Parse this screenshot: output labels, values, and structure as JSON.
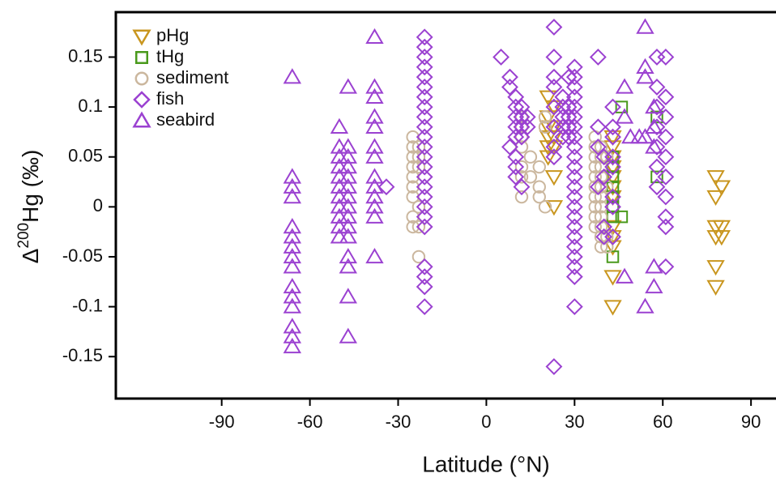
{
  "chart_data": {
    "type": "scatter",
    "xlabel": "Latitude (°N)",
    "ylabel_prefix": "Δ",
    "ylabel_sup": "200",
    "ylabel_rest": "Hg (‰)",
    "xlim": [
      -126,
      98.5
    ],
    "ylim": [
      -0.192,
      0.195
    ],
    "xticks": [
      -90,
      -60,
      -30,
      0,
      30,
      60,
      90
    ],
    "yticks": [
      -0.15,
      -0.1,
      -0.05,
      0,
      0.05,
      0.1,
      0.15
    ],
    "legend": "upper left",
    "series": [
      {
        "name": "pHg",
        "color": "#c9961f",
        "marker": "triangle-down",
        "x": [
          21,
          21,
          21,
          21,
          21,
          21,
          23,
          23,
          23,
          23,
          23,
          23,
          43,
          43,
          43,
          43,
          43,
          43,
          43,
          43,
          43,
          43,
          43,
          43,
          78,
          78,
          78,
          78,
          78,
          78,
          80,
          80,
          80,
          80
        ],
        "values": [
          0.11,
          0.09,
          0.08,
          0.07,
          0.06,
          0.05,
          0.1,
          0.08,
          0.07,
          0.06,
          0.03,
          0,
          0.07,
          0.06,
          0.05,
          0.04,
          0.03,
          0.02,
          0.01,
          -0.02,
          -0.03,
          -0.04,
          -0.07,
          -0.1,
          0.03,
          0.01,
          -0.02,
          -0.03,
          -0.06,
          -0.08,
          0.02,
          0.02,
          -0.02,
          -0.03
        ]
      },
      {
        "name": "tHg",
        "color": "#4a9a1c",
        "marker": "square",
        "x": [
          43,
          43,
          43,
          43,
          43,
          43,
          43,
          43,
          46,
          46,
          58,
          58
        ],
        "values": [
          0.05,
          0.04,
          0.03,
          0.02,
          0.01,
          0,
          -0.01,
          -0.05,
          0.1,
          -0.01,
          0.09,
          0.03
        ]
      },
      {
        "name": "sediment",
        "color": "#cbb79e",
        "marker": "circle",
        "x": [
          -25,
          -25,
          -25,
          -25,
          -25,
          -25,
          -25,
          -25,
          -25,
          -23,
          -23,
          -23,
          -23,
          -23,
          -23,
          12,
          12,
          12,
          12,
          12,
          12,
          12,
          15,
          15,
          18,
          18,
          18,
          20,
          20,
          20,
          37,
          37,
          37,
          37,
          37,
          37,
          37,
          37,
          37,
          37,
          39,
          39,
          39,
          39,
          39,
          39,
          39,
          39,
          39,
          39,
          39,
          41,
          41,
          41,
          41
        ],
        "values": [
          0.07,
          0.06,
          0.05,
          0.04,
          0.03,
          0.02,
          0.01,
          -0.01,
          -0.02,
          0.06,
          0.05,
          0.04,
          0,
          -0.02,
          -0.05,
          0.09,
          0.08,
          0.07,
          0.06,
          0.04,
          0.03,
          0.01,
          0.05,
          0.03,
          0.04,
          0.02,
          0.01,
          0.09,
          0.08,
          0,
          0.07,
          0.06,
          0.05,
          0.04,
          0.03,
          0.02,
          0.01,
          0,
          -0.01,
          -0.02,
          0.06,
          0.05,
          0.04,
          0.03,
          0.02,
          0.01,
          0,
          -0.01,
          -0.02,
          -0.03,
          -0.04,
          0.05,
          0.02,
          -0.03,
          -0.04
        ]
      },
      {
        "name": "fish",
        "color": "#9b41d1",
        "marker": "diamond",
        "x": [
          -34,
          -21,
          -21,
          -21,
          -21,
          -21,
          -21,
          -21,
          -21,
          -21,
          -21,
          -21,
          -21,
          -21,
          -21,
          -21,
          -21,
          -21,
          -21,
          -21,
          -21,
          -21,
          -21,
          -21,
          -21,
          5,
          8,
          8,
          8,
          10,
          10,
          10,
          10,
          10,
          10,
          10,
          10,
          12,
          12,
          12,
          12,
          12,
          14,
          14,
          23,
          23,
          23,
          23,
          23,
          23,
          23,
          23,
          23,
          26,
          26,
          26,
          26,
          26,
          28,
          28,
          28,
          28,
          28,
          30,
          30,
          30,
          30,
          30,
          30,
          30,
          30,
          30,
          30,
          30,
          30,
          30,
          30,
          30,
          30,
          30,
          30,
          30,
          30,
          30,
          30,
          30,
          38,
          38,
          38,
          38,
          40,
          40,
          40,
          40,
          43,
          43,
          43,
          43,
          43,
          43,
          43,
          43,
          58,
          58,
          58,
          58,
          58,
          58,
          58,
          61,
          61,
          61,
          61,
          61,
          61,
          61,
          61,
          61,
          61
        ],
        "values": [
          0.02,
          0.17,
          0.16,
          0.15,
          0.14,
          0.13,
          0.12,
          0.11,
          0.1,
          0.09,
          0.08,
          0.07,
          0.06,
          0.05,
          0.04,
          0.03,
          0.02,
          0.01,
          0,
          -0.01,
          -0.02,
          -0.06,
          -0.07,
          -0.08,
          -0.1,
          0.15,
          0.13,
          0.12,
          0.06,
          0.11,
          0.1,
          0.09,
          0.08,
          0.07,
          0.05,
          0.04,
          0.03,
          0.1,
          0.09,
          0.08,
          0.07,
          0.02,
          0.09,
          0.08,
          0.18,
          0.15,
          0.13,
          0.12,
          0.1,
          0.08,
          0.06,
          0.05,
          -0.16,
          0.11,
          0.1,
          0.09,
          0.08,
          0.07,
          0.13,
          0.1,
          0.09,
          0.08,
          0.07,
          0.14,
          0.13,
          0.12,
          0.11,
          0.1,
          0.09,
          0.08,
          0.07,
          0.06,
          0.05,
          0.04,
          0.03,
          0.02,
          0.01,
          0,
          -0.01,
          -0.02,
          -0.03,
          -0.04,
          -0.05,
          -0.06,
          -0.07,
          -0.1,
          0.15,
          0.08,
          0.06,
          0.02,
          0.05,
          0.03,
          -0.02,
          -0.03,
          0.1,
          0.08,
          0.07,
          0.05,
          0.04,
          0.01,
          0,
          -0.03,
          0.15,
          0.12,
          0.1,
          0.08,
          0.06,
          0.04,
          0.02,
          0.15,
          0.11,
          0.09,
          0.07,
          0.05,
          0.03,
          0.01,
          -0.01,
          -0.02,
          -0.06
        ]
      },
      {
        "name": "seabird",
        "color": "#9b41d1",
        "marker": "triangle",
        "x": [
          -66,
          -66,
          -66,
          -66,
          -66,
          -66,
          -66,
          -66,
          -66,
          -66,
          -66,
          -66,
          -66,
          -66,
          -66,
          -50,
          -50,
          -50,
          -50,
          -50,
          -50,
          -50,
          -50,
          -50,
          -50,
          -50,
          -47,
          -47,
          -47,
          -47,
          -47,
          -47,
          -47,
          -47,
          -47,
          -47,
          -47,
          -47,
          -47,
          -47,
          -47,
          -38,
          -38,
          -38,
          -38,
          -38,
          -38,
          -38,
          -38,
          -38,
          -38,
          -38,
          -38,
          -38,
          54,
          54,
          54,
          54,
          54,
          57,
          57,
          57,
          57,
          57,
          47,
          47,
          47,
          49,
          52
        ],
        "values": [
          0.13,
          0.03,
          0.02,
          0.01,
          -0.02,
          -0.03,
          -0.04,
          -0.05,
          -0.06,
          -0.08,
          -0.09,
          -0.1,
          -0.12,
          -0.13,
          -0.14,
          0.08,
          0.06,
          0.05,
          0.04,
          0.03,
          0.02,
          0.01,
          0,
          -0.01,
          -0.02,
          -0.03,
          0.12,
          0.06,
          0.05,
          0.04,
          0.03,
          0.02,
          0.01,
          0,
          -0.01,
          -0.02,
          -0.03,
          -0.05,
          -0.06,
          -0.09,
          -0.13,
          0.17,
          0.12,
          0.11,
          0.09,
          0.08,
          0.06,
          0.05,
          0.03,
          0.02,
          0.01,
          0,
          -0.01,
          -0.05,
          0.18,
          0.14,
          0.13,
          0.07,
          -0.1,
          0.1,
          0.08,
          0.06,
          -0.06,
          -0.08,
          0.12,
          0.09,
          -0.07,
          0.07,
          0.07
        ]
      }
    ]
  }
}
